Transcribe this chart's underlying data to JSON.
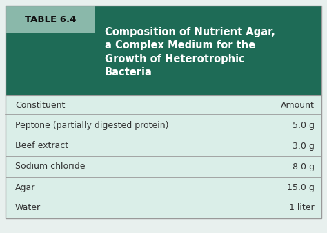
{
  "table_label": "TABLE 6.4",
  "title_lines": [
    "Composition of Nutrient Agar,",
    "a Complex Medium for the",
    "Growth of Heterotrophic",
    "Bacteria"
  ],
  "col_headers": [
    "Constituent",
    "Amount"
  ],
  "rows": [
    [
      "Peptone (partially digested protein)",
      "5.0 g"
    ],
    [
      "Beef extract",
      "3.0 g"
    ],
    [
      "Sodium chloride",
      "8.0 g"
    ],
    [
      "Agar",
      "15.0 g"
    ],
    [
      "Water",
      "1 liter"
    ]
  ],
  "header_bg_dark": "#1e6b56",
  "header_label_bg": "#8ab8aa",
  "row_bg_light": "#daeee8",
  "col_header_bg": "#daeee8",
  "border_color": "#999999",
  "title_text_color": "#ffffff",
  "table_label_color": "#111111",
  "col_header_text_color": "#333333",
  "row_text_color": "#333333",
  "outer_bg": "#ffffff",
  "fig_bg": "#e8f0ee"
}
